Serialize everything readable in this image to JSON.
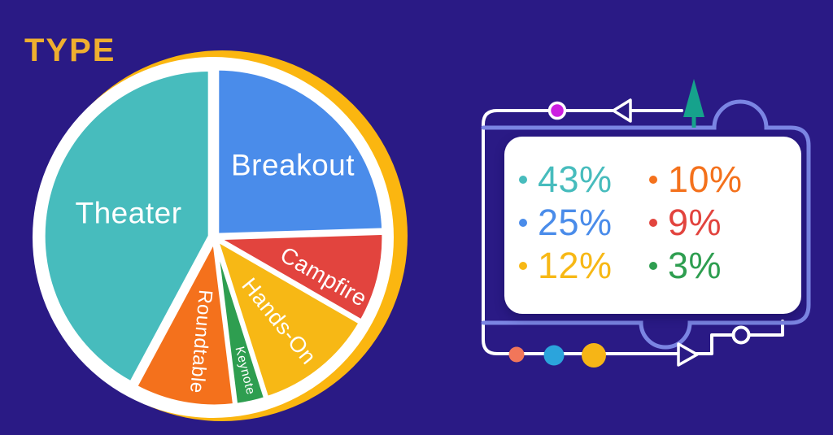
{
  "title": "TYPE",
  "colors": {
    "background": "#2A1A85",
    "title_text": "#EFAF2F",
    "gold_ring": "#FBB610",
    "plate": "#FFFFFF",
    "panel_border": "#7B85E3",
    "frame_line": "#FFFFFF",
    "magenta_dot": "#CC1FE0",
    "tree": "#16A28C",
    "coral_dot": "#F1765A",
    "sky_dot": "#2BA4DC",
    "gold_dot": "#F6B516"
  },
  "chart_data": {
    "type": "pie",
    "title": "TYPE",
    "direction": "clockwise",
    "start_angle_deg": 0,
    "unit": "%",
    "series": [
      {
        "name": "Breakout",
        "value": 25,
        "color": "#4A8CEA"
      },
      {
        "name": "Campfire",
        "value": 9,
        "color": "#E2443E"
      },
      {
        "name": "Hands-On",
        "value": 12,
        "color": "#F7B815"
      },
      {
        "name": "Keynote",
        "value": 3,
        "color": "#2E9E50"
      },
      {
        "name": "Roundtable",
        "value": 10,
        "color": "#F4711C"
      },
      {
        "name": "Theater",
        "value": 43,
        "color": "#47BCBD"
      }
    ],
    "legend_order": [
      "Theater",
      "Roundtable",
      "Breakout",
      "Campfire",
      "Hands-On",
      "Keynote"
    ],
    "legend_position": "right-card"
  }
}
